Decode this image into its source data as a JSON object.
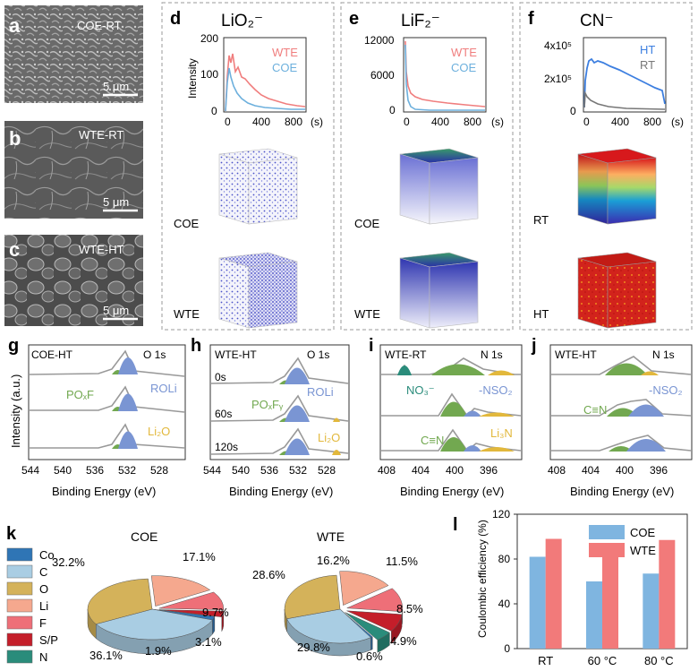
{
  "panel_letters": {
    "a": "a",
    "b": "b",
    "c": "c",
    "d": "d",
    "e": "e",
    "f": "f",
    "g": "g",
    "h": "h",
    "i": "i",
    "j": "j",
    "k": "k",
    "l": "l"
  },
  "sem": [
    {
      "label": "COE-RT",
      "scale": "5 μm"
    },
    {
      "label": "WTE-RT",
      "scale": "5 μm"
    },
    {
      "label": "WTE-HT",
      "scale": "5 μm"
    }
  ],
  "tof": {
    "d": {
      "title": "LiO₂⁻",
      "ylabel": "Intensity",
      "yticks": [
        "200",
        "100",
        "0"
      ],
      "xticks": [
        "0",
        "400",
        "800"
      ],
      "xunit": "(s)",
      "legend": [
        "WTE",
        "COE"
      ],
      "top_label": "COE",
      "bottom_label": "WTE"
    },
    "e": {
      "title": "LiF₂⁻",
      "yticks": [
        "12000",
        "6000",
        "0"
      ],
      "xticks": [
        "0",
        "400",
        "800"
      ],
      "xunit": "(s)",
      "legend": [
        "WTE",
        "COE"
      ],
      "top_label": "COE",
      "bottom_label": "WTE"
    },
    "f": {
      "title": "CN⁻",
      "yticks": [
        "4x10⁵",
        "2x10⁵",
        "0"
      ],
      "xticks": [
        "0",
        "400",
        "800"
      ],
      "xunit": "(s)",
      "legend": [
        "HT",
        "RT"
      ],
      "top_label": "RT",
      "bottom_label": "HT"
    }
  },
  "xps": {
    "ylabel": "Intensity (a.u.)",
    "xlabel": "Binding Energy (eV)",
    "g": {
      "sample": "COE-HT",
      "core": "O 1s",
      "xticks": [
        "544",
        "540",
        "536",
        "532",
        "528"
      ],
      "peaks": [
        "POₓF",
        "ROLi",
        "Li₂O"
      ]
    },
    "h": {
      "sample": "WTE-HT",
      "core": "O 1s",
      "xticks": [
        "544",
        "540",
        "536",
        "532",
        "528"
      ],
      "times": [
        "0s",
        "60s",
        "120s"
      ],
      "peaks": [
        "POₓFᵧ",
        "ROLi",
        "Li₂O"
      ]
    },
    "i": {
      "sample": "WTE-RT",
      "core": "N 1s",
      "xticks": [
        "408",
        "404",
        "400",
        "396"
      ],
      "peaks": [
        "NO₃⁻",
        "-NSO₂",
        "C≡N",
        "Li₃N"
      ]
    },
    "j": {
      "sample": "WTE-HT",
      "core": "N 1s",
      "xticks": [
        "408",
        "404",
        "400",
        "396"
      ],
      "peaks": [
        "C≡N",
        "-NSO₂"
      ]
    }
  },
  "chart_data": [
    {
      "type": "pie",
      "title": "COE",
      "categories": [
        "Co",
        "C",
        "O",
        "Li",
        "F",
        "S/P",
        "N"
      ],
      "values": [
        1.9,
        36.1,
        32.2,
        17.1,
        9.7,
        3.1,
        0.0
      ],
      "labels": [
        "1.9%",
        "36.1%",
        "32.2%",
        "17.1%",
        "9.7%",
        "3.1%"
      ],
      "colors": [
        "#2f75b5",
        "#a9cde3",
        "#d4b25a",
        "#f5a88e",
        "#ee6f78",
        "#c41e2a",
        "#2a8c7b"
      ]
    },
    {
      "type": "pie",
      "title": "WTE",
      "categories": [
        "Co",
        "C",
        "O",
        "Li",
        "F",
        "S/P",
        "N"
      ],
      "values": [
        0.6,
        29.8,
        28.6,
        16.2,
        11.5,
        8.5,
        4.9
      ],
      "labels": [
        "0.6%",
        "29.8%",
        "28.6%",
        "16.2%",
        "11.5%",
        "8.5%",
        "4.9%"
      ],
      "colors": [
        "#2f75b5",
        "#a9cde3",
        "#d4b25a",
        "#f5a88e",
        "#ee6f78",
        "#c41e2a",
        "#2a8c7b"
      ]
    },
    {
      "type": "bar",
      "title": "",
      "categories": [
        "RT",
        "60 °C",
        "80 °C"
      ],
      "series": [
        {
          "name": "COE",
          "values": [
            82,
            60,
            67
          ],
          "color": "#7fb5e0"
        },
        {
          "name": "WTE",
          "values": [
            98,
            92,
            97
          ],
          "color": "#f27a7a"
        }
      ],
      "ylabel": "Coulombic efficiency (%)",
      "ylim": [
        0,
        120
      ],
      "yticks": [
        "0",
        "40",
        "80",
        "120"
      ]
    }
  ],
  "legend_k": [
    "Co",
    "C",
    "O",
    "Li",
    "F",
    "S/P",
    "N"
  ]
}
